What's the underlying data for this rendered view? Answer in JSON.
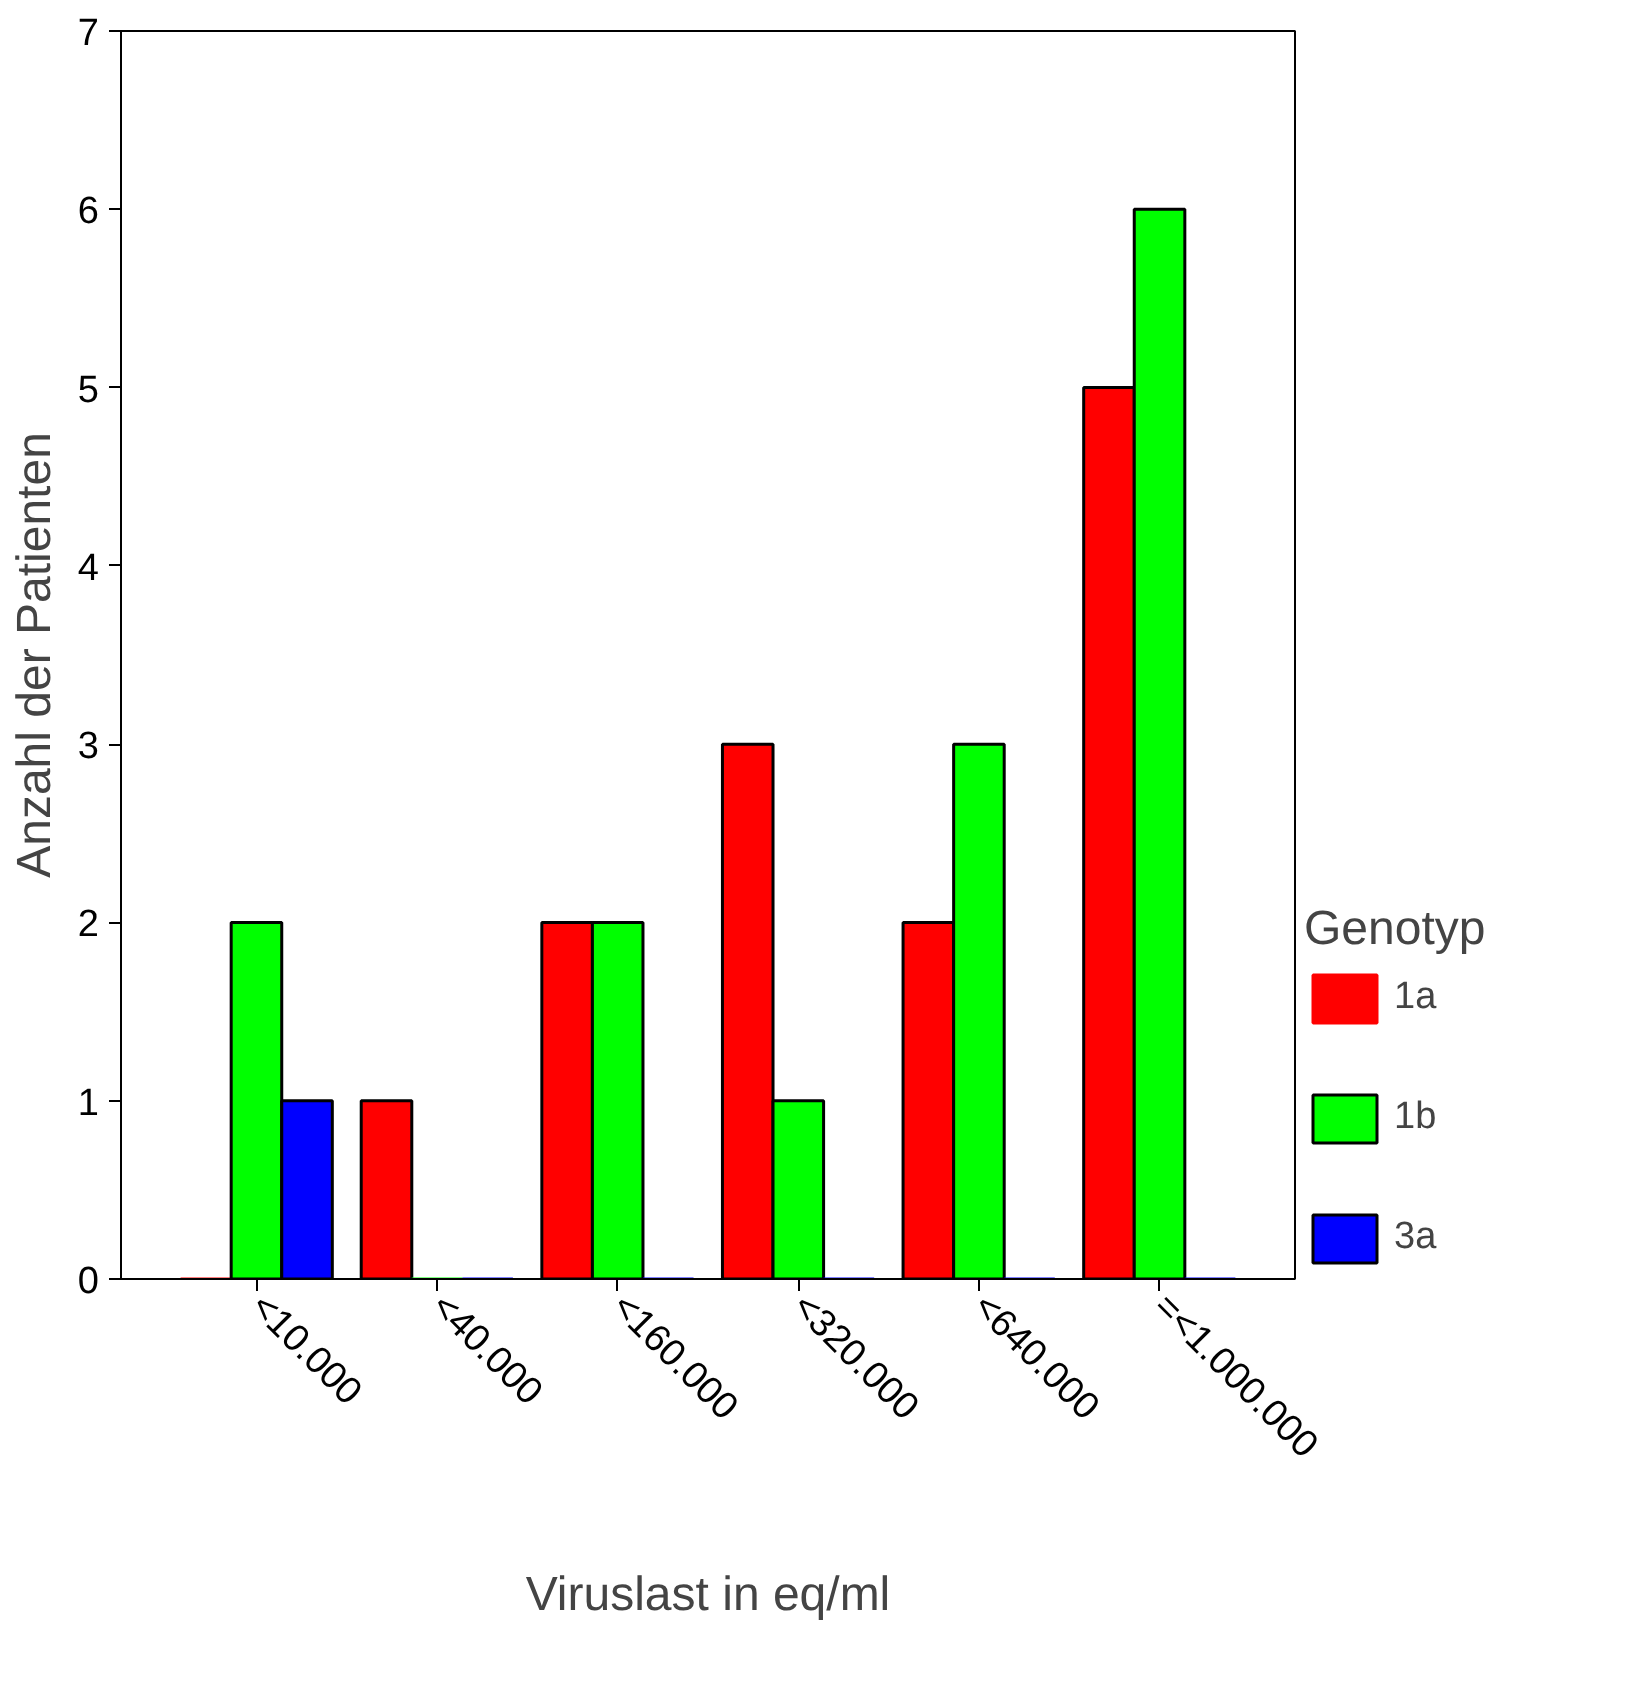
{
  "chart_data": {
    "type": "bar",
    "categories": [
      "<10.000",
      "<40.000",
      "<160.000",
      "<320.000",
      "<640.000",
      "=<1.000.000"
    ],
    "series": [
      {
        "name": "1a",
        "color": "#ff0000",
        "values": [
          0,
          1,
          2,
          3,
          2,
          5
        ]
      },
      {
        "name": "1b",
        "color": "#00ff00",
        "values": [
          2,
          0,
          2,
          1,
          3,
          6
        ]
      },
      {
        "name": "3a",
        "color": "#0000ff",
        "values": [
          1,
          0,
          0,
          0,
          0,
          0
        ]
      }
    ],
    "xlabel": "Viruslast in eq/ml",
    "ylabel": "Anzahl der Patienten",
    "legend_title": "Genotyp",
    "ylim": [
      0,
      7
    ],
    "yticks": [
      0,
      1,
      2,
      3,
      4,
      5,
      6,
      7
    ],
    "grid": false,
    "legend": "right"
  }
}
